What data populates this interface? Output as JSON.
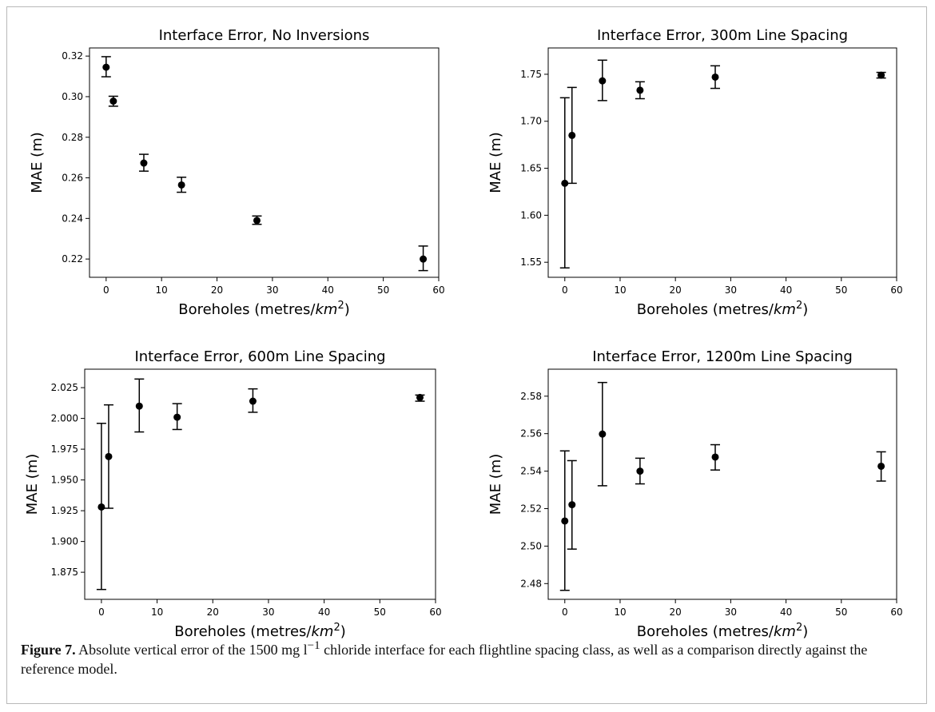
{
  "caption": {
    "label": "Figure 7.",
    "text_before_unit": " Absolute vertical error of the 1500 mg l",
    "superscript": "−1",
    "text_after_unit": " chloride interface for each flightline spacing class, as well as a comparison directly against the reference model."
  },
  "chart_data": [
    {
      "type": "scatter",
      "title": "Interface Error, No Inversions",
      "xlabel": "Boreholes (metres/km²)",
      "ylabel": "MAE (m)",
      "xlim": [
        -3,
        60
      ],
      "ylim": [
        0.211,
        0.324
      ],
      "xticks": [
        "0",
        "10",
        "20",
        "30",
        "40",
        "50",
        "60"
      ],
      "yticks": [
        "0.22",
        "0.24",
        "0.26",
        "0.28",
        "0.30",
        "0.32"
      ],
      "error_bars": true,
      "points": [
        {
          "x": 0,
          "y": 0.3145,
          "err_low": 0.3098,
          "err_high": 0.3197
        },
        {
          "x": 1.3,
          "y": 0.2978,
          "err_low": 0.2953,
          "err_high": 0.3002
        },
        {
          "x": 6.8,
          "y": 0.2673,
          "err_low": 0.2633,
          "err_high": 0.2716
        },
        {
          "x": 13.6,
          "y": 0.2565,
          "err_low": 0.2529,
          "err_high": 0.2603
        },
        {
          "x": 27.2,
          "y": 0.239,
          "err_low": 0.2371,
          "err_high": 0.2412
        },
        {
          "x": 57.2,
          "y": 0.22,
          "err_low": 0.2143,
          "err_high": 0.2264
        }
      ]
    },
    {
      "type": "scatter",
      "title": "Interface Error, 300m Line Spacing",
      "xlabel": "Boreholes (metres/km²)",
      "ylabel": "MAE (m)",
      "xlim": [
        -3,
        60
      ],
      "ylim": [
        1.534,
        1.778
      ],
      "xticks": [
        "0",
        "10",
        "20",
        "30",
        "40",
        "50",
        "60"
      ],
      "yticks": [
        "1.55",
        "1.60",
        "1.65",
        "1.70",
        "1.75"
      ],
      "error_bars": true,
      "points": [
        {
          "x": 0,
          "y": 1.634,
          "err_low": 1.544,
          "err_high": 1.725
        },
        {
          "x": 1.3,
          "y": 1.685,
          "err_low": 1.634,
          "err_high": 1.736
        },
        {
          "x": 6.8,
          "y": 1.743,
          "err_low": 1.722,
          "err_high": 1.765
        },
        {
          "x": 13.6,
          "y": 1.733,
          "err_low": 1.724,
          "err_high": 1.742
        },
        {
          "x": 27.2,
          "y": 1.747,
          "err_low": 1.735,
          "err_high": 1.759
        },
        {
          "x": 57.2,
          "y": 1.749,
          "err_low": 1.746,
          "err_high": 1.752
        }
      ]
    },
    {
      "type": "scatter",
      "title": "Interface Error, 600m Line Spacing",
      "xlabel": "Boreholes (metres/km²)",
      "ylabel": "MAE (m)",
      "xlim": [
        -3,
        60
      ],
      "ylim": [
        1.853,
        2.04
      ],
      "xticks": [
        "0",
        "10",
        "20",
        "30",
        "40",
        "50",
        "60"
      ],
      "yticks": [
        "1.875",
        "1.900",
        "1.925",
        "1.950",
        "1.975",
        "2.000",
        "2.025"
      ],
      "error_bars": true,
      "points": [
        {
          "x": 0,
          "y": 1.928,
          "err_low": 1.861,
          "err_high": 1.996
        },
        {
          "x": 1.3,
          "y": 1.969,
          "err_low": 1.927,
          "err_high": 2.011
        },
        {
          "x": 6.8,
          "y": 2.01,
          "err_low": 1.989,
          "err_high": 2.032
        },
        {
          "x": 13.6,
          "y": 2.001,
          "err_low": 1.991,
          "err_high": 2.012
        },
        {
          "x": 27.2,
          "y": 2.014,
          "err_low": 2.005,
          "err_high": 2.024
        },
        {
          "x": 57.2,
          "y": 2.017,
          "err_low": 2.014,
          "err_high": 2.019
        }
      ]
    },
    {
      "type": "scatter",
      "title": "Interface Error, 1200m Line Spacing",
      "xlabel": "Boreholes (metres/km²)",
      "ylabel": "MAE (m)",
      "xlim": [
        -3,
        60
      ],
      "ylim": [
        2.4716,
        2.5944
      ],
      "xticks": [
        "0",
        "10",
        "20",
        "30",
        "40",
        "50",
        "60"
      ],
      "yticks": [
        "2.48",
        "2.50",
        "2.52",
        "2.54",
        "2.56",
        "2.58"
      ],
      "error_bars": true,
      "points": [
        {
          "x": 0,
          "y": 2.5134,
          "err_low": 2.4764,
          "err_high": 2.5508
        },
        {
          "x": 1.3,
          "y": 2.5221,
          "err_low": 2.4984,
          "err_high": 2.5456
        },
        {
          "x": 6.8,
          "y": 2.5598,
          "err_low": 2.5322,
          "err_high": 2.5873
        },
        {
          "x": 13.6,
          "y": 2.54,
          "err_low": 2.5332,
          "err_high": 2.5469
        },
        {
          "x": 27.2,
          "y": 2.5475,
          "err_low": 2.5406,
          "err_high": 2.5541
        },
        {
          "x": 57.2,
          "y": 2.5426,
          "err_low": 2.5347,
          "err_high": 2.5503
        }
      ]
    }
  ]
}
